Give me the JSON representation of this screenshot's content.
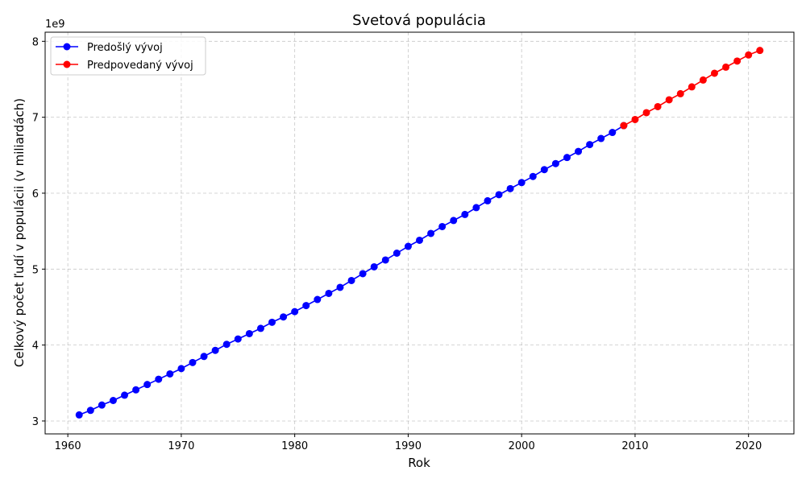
{
  "chart_data": {
    "type": "line",
    "title": "Svetová populácia",
    "xlabel": "Rok",
    "ylabel": "Celkový počet ľudí v populácii (v miliardách)",
    "y_offset_label": "1e9",
    "xlim": [
      1958,
      2024
    ],
    "ylim": [
      2830000000,
      8120000000
    ],
    "xticks": [
      1960,
      1970,
      1980,
      1990,
      2000,
      2010,
      2020
    ],
    "yticks": [
      {
        "value": 3000000000,
        "label": "3"
      },
      {
        "value": 4000000000,
        "label": "4"
      },
      {
        "value": 5000000000,
        "label": "5"
      },
      {
        "value": 6000000000,
        "label": "6"
      },
      {
        "value": 7000000000,
        "label": "7"
      },
      {
        "value": 8000000000,
        "label": "8"
      }
    ],
    "grid": true,
    "legend_position": "top-left",
    "series": [
      {
        "name": "Predošlý vývoj",
        "color": "#0000ff",
        "x": [
          1961,
          1962,
          1963,
          1964,
          1965,
          1966,
          1967,
          1968,
          1969,
          1970,
          1971,
          1972,
          1973,
          1974,
          1975,
          1976,
          1977,
          1978,
          1979,
          1980,
          1981,
          1982,
          1983,
          1984,
          1985,
          1986,
          1987,
          1988,
          1989,
          1990,
          1991,
          1992,
          1993,
          1994,
          1995,
          1996,
          1997,
          1998,
          1999,
          2000,
          2001,
          2002,
          2003,
          2004,
          2005,
          2006,
          2007,
          2008,
          2009
        ],
        "y": [
          3080000000,
          3140000000,
          3210000000,
          3270000000,
          3340000000,
          3410000000,
          3480000000,
          3550000000,
          3620000000,
          3690000000,
          3770000000,
          3850000000,
          3930000000,
          4010000000,
          4080000000,
          4150000000,
          4220000000,
          4300000000,
          4370000000,
          4440000000,
          4520000000,
          4600000000,
          4680000000,
          4760000000,
          4850000000,
          4940000000,
          5030000000,
          5120000000,
          5210000000,
          5300000000,
          5380000000,
          5470000000,
          5560000000,
          5640000000,
          5720000000,
          5810000000,
          5900000000,
          5980000000,
          6060000000,
          6140000000,
          6220000000,
          6310000000,
          6390000000,
          6470000000,
          6550000000,
          6640000000,
          6720000000,
          6800000000,
          6890000000
        ]
      },
      {
        "name": "Predpovedaný vývoj",
        "color": "#ff0000",
        "x": [
          2009,
          2010,
          2011,
          2012,
          2013,
          2014,
          2015,
          2016,
          2017,
          2018,
          2019,
          2020,
          2021
        ],
        "y": [
          6890000000,
          6970000000,
          7060000000,
          7140000000,
          7230000000,
          7310000000,
          7400000000,
          7490000000,
          7580000000,
          7660000000,
          7740000000,
          7820000000,
          7880000000
        ]
      }
    ]
  }
}
